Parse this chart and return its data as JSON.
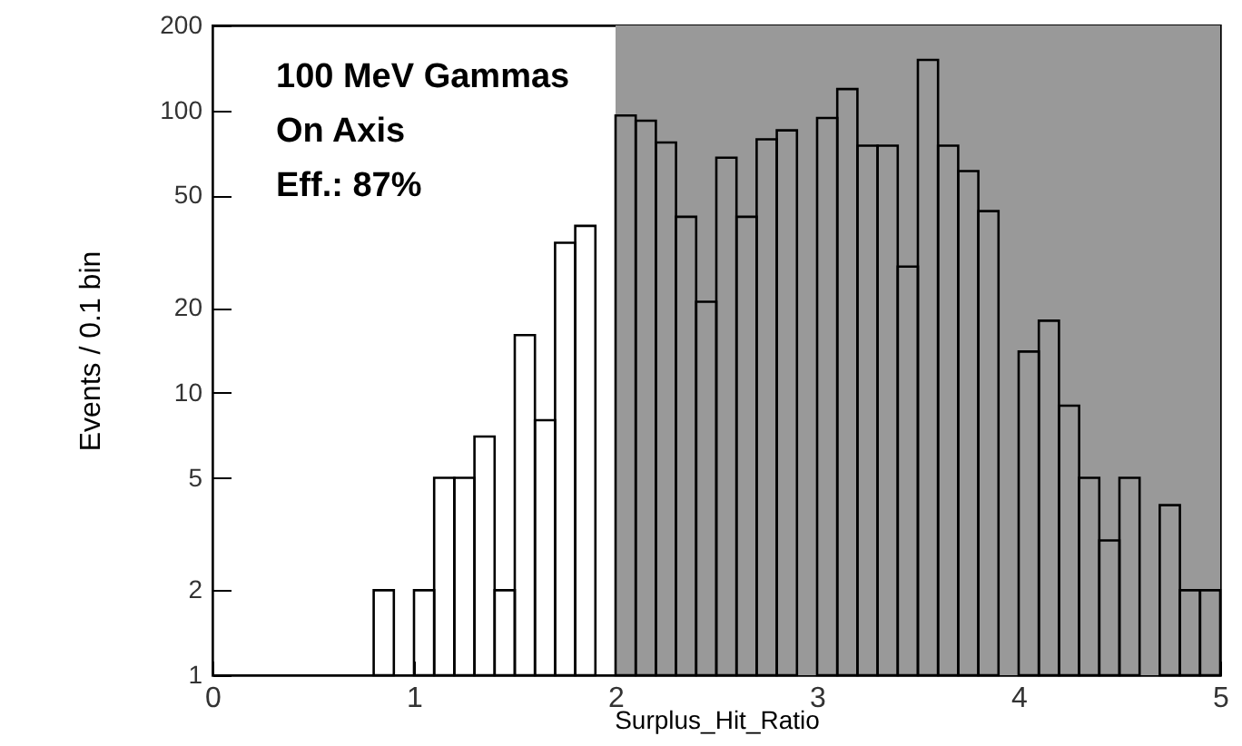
{
  "chart_data": {
    "type": "histogram",
    "xlabel": "Surplus_Hit_Ratio",
    "ylabel": "Events / 0.1 bin",
    "annotations": [
      "100 MeV Gammas",
      "On Axis",
      "Eff.: 87%"
    ],
    "bins": [
      0.8,
      0.9,
      1.0,
      1.1,
      1.2,
      1.3,
      1.4,
      1.5,
      1.6,
      1.7,
      1.8,
      1.9,
      2.0,
      2.1,
      2.2,
      2.3,
      2.4,
      2.5,
      2.6,
      2.7,
      2.8,
      2.9,
      3.0,
      3.1,
      3.2,
      3.3,
      3.4,
      3.5,
      3.6,
      3.7,
      3.8,
      3.9,
      4.0,
      4.1,
      4.2,
      4.3,
      4.4,
      4.5,
      4.6,
      4.7,
      4.8,
      4.9,
      5.0
    ],
    "values": [
      2,
      null,
      2,
      5,
      5,
      7,
      2,
      16,
      8,
      34,
      39,
      null,
      96,
      92,
      77,
      42,
      21,
      68,
      42,
      79,
      85,
      null,
      94,
      119,
      75,
      75,
      28,
      151,
      75,
      61,
      44,
      null,
      14,
      18,
      9,
      5,
      3,
      5,
      null,
      4,
      2,
      2
    ],
    "color": "#000000",
    "bands": [
      {
        "axis": "x",
        "from": 2,
        "to": 5,
        "color": "#999999"
      }
    ],
    "xlim": [
      0,
      5
    ],
    "xticks": [
      0,
      1,
      2,
      3,
      4,
      5
    ],
    "ylim": [
      1,
      200
    ],
    "yticks": [
      1,
      2,
      5,
      10,
      20,
      50,
      100,
      200
    ],
    "log": "y",
    "grid": false
  }
}
